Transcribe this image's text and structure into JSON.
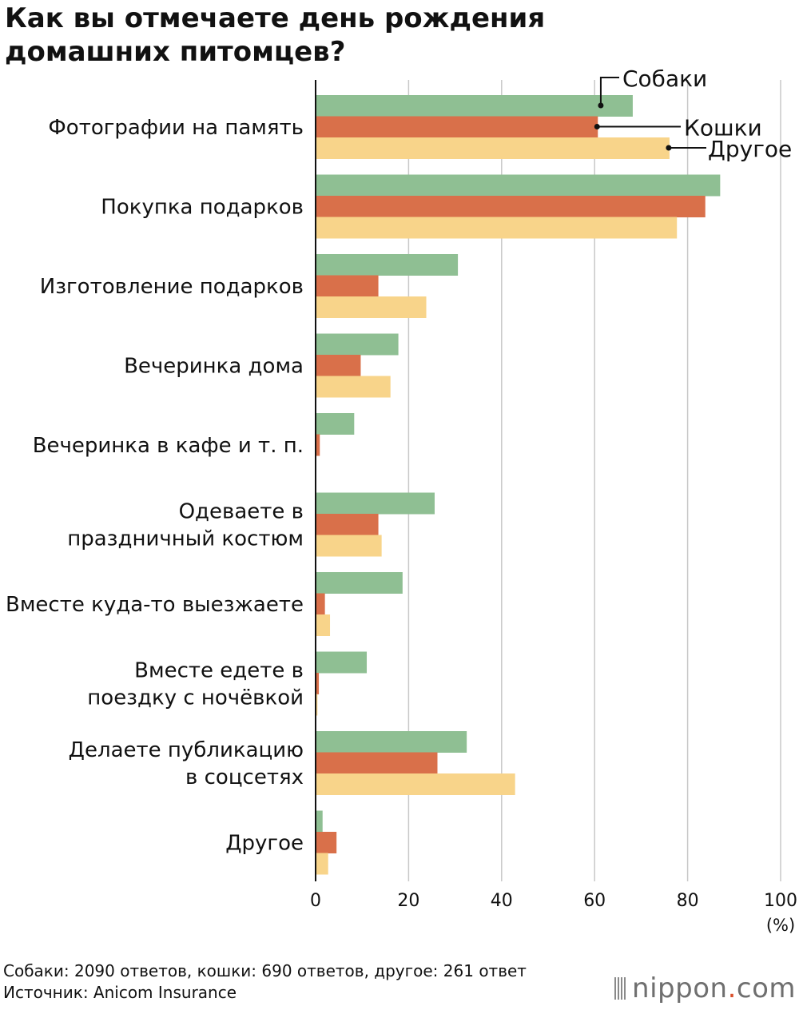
{
  "title_lines": [
    "Как вы отмечаете день рождения",
    "домашних питомцев?"
  ],
  "chart_data": {
    "type": "bar",
    "orientation": "horizontal",
    "title": "Как вы отмечаете день рождения домашних питомцев?",
    "categories": [
      [
        "Фотографии на память"
      ],
      [
        "Покупка подарков"
      ],
      [
        "Изготовление подарков"
      ],
      [
        "Вечеринка дома"
      ],
      [
        "Вечеринка в кафе и т. п."
      ],
      [
        "Одеваете в",
        "праздничный костюм"
      ],
      [
        "Вместе куда-то выезжаете"
      ],
      [
        "Вместе едете в",
        "поездку с ночёвкой"
      ],
      [
        "Делаете публикацию",
        "в соцсетях"
      ],
      [
        "Другое"
      ]
    ],
    "series": [
      {
        "name": "Собаки",
        "color": "#8fbf93",
        "values": [
          68.2,
          87.0,
          30.6,
          17.8,
          8.3,
          25.6,
          18.7,
          11.0,
          32.5,
          1.5
        ]
      },
      {
        "name": "Кошки",
        "color": "#d9704a",
        "values": [
          60.7,
          83.8,
          13.5,
          9.7,
          0.9,
          13.5,
          2.0,
          0.7,
          26.2,
          4.5
        ]
      },
      {
        "name": "Другое",
        "color": "#f8d48a",
        "values": [
          76.1,
          77.7,
          23.8,
          16.1,
          0.0,
          14.2,
          3.1,
          0.4,
          42.9,
          2.7
        ]
      }
    ],
    "xlim": [
      0,
      100
    ],
    "xticks": [
      0,
      20,
      40,
      60,
      80,
      100
    ],
    "xunit": "(%)",
    "legend": "inline labels near top-right"
  },
  "footer": {
    "note": "Собаки: 2090 ответов, кошки: 690 ответов, другое: 261 ответ",
    "source": "Источник: Anicom Insurance"
  },
  "brand": {
    "name": "nippon",
    "dot": ".",
    "tld": "com"
  }
}
